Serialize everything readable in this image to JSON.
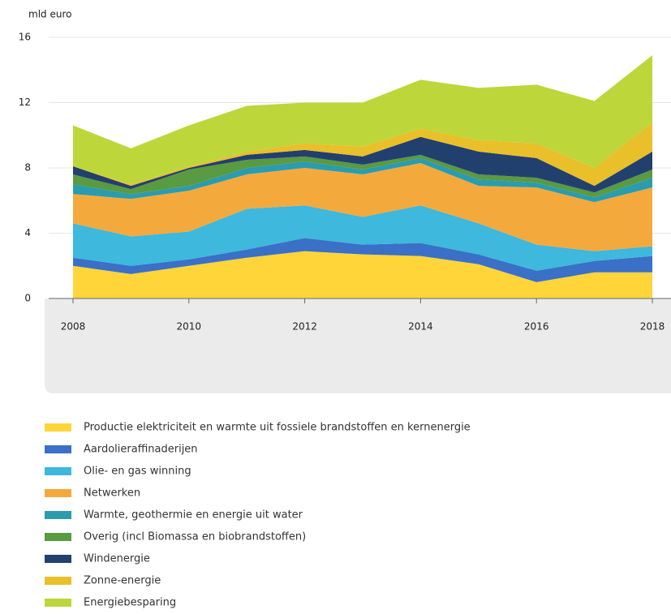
{
  "chart_data": {
    "type": "stacked-area",
    "y_axis_label": "mld euro",
    "x": [
      2008,
      2009,
      2010,
      2011,
      2012,
      2013,
      2014,
      2015,
      2016,
      2017,
      2018
    ],
    "xlim": [
      2008,
      2018
    ],
    "xticks": [
      2008,
      2010,
      2012,
      2014,
      2016,
      2018
    ],
    "ylim": [
      0,
      16
    ],
    "yticks": [
      0,
      4,
      8,
      12,
      16
    ],
    "grid": true,
    "series": [
      {
        "name": "Productie elektriciteit en warmte uit fossiele brandstoffen en kernenergie",
        "color": "#ffd53a",
        "values": [
          2.0,
          1.5,
          2.0,
          2.5,
          2.9,
          2.7,
          2.6,
          2.1,
          1.0,
          1.6,
          1.6
        ]
      },
      {
        "name": "Aardolieraffinaderijen",
        "color": "#3a70c6",
        "values": [
          0.5,
          0.5,
          0.4,
          0.5,
          0.8,
          0.6,
          0.8,
          0.6,
          0.7,
          0.7,
          1.0
        ]
      },
      {
        "name": "Olie- en gas winning",
        "color": "#3eb8dc",
        "values": [
          2.1,
          1.8,
          1.7,
          2.5,
          2.0,
          1.7,
          2.3,
          1.9,
          1.6,
          0.6,
          0.6
        ]
      },
      {
        "name": "Netwerken",
        "color": "#f4a93c",
        "values": [
          1.8,
          2.3,
          2.5,
          2.1,
          2.3,
          2.6,
          2.6,
          2.3,
          3.5,
          3.0,
          3.6
        ]
      },
      {
        "name": "Warmte, geothermie en energie uit water",
        "color": "#2b9cad",
        "values": [
          0.6,
          0.3,
          0.3,
          0.4,
          0.4,
          0.3,
          0.3,
          0.4,
          0.3,
          0.3,
          0.6
        ]
      },
      {
        "name": "Overig (incl Biomassa en biobrandstoffen)",
        "color": "#5a9a40",
        "values": [
          0.6,
          0.3,
          1.0,
          0.5,
          0.3,
          0.3,
          0.2,
          0.3,
          0.3,
          0.3,
          0.5
        ]
      },
      {
        "name": "Windenergie",
        "color": "#22406e",
        "values": [
          0.5,
          0.2,
          0.1,
          0.3,
          0.4,
          0.5,
          1.1,
          1.4,
          1.2,
          0.4,
          1.1
        ]
      },
      {
        "name": "Zonne-energie",
        "color": "#e9bf2a",
        "values": [
          0.0,
          0.1,
          0.1,
          0.2,
          0.4,
          0.6,
          0.5,
          0.7,
          0.9,
          1.1,
          1.8
        ]
      },
      {
        "name": "Energiebesparing",
        "color": "#bdd63a",
        "values": [
          2.5,
          2.2,
          2.5,
          2.8,
          2.5,
          2.7,
          3.0,
          3.2,
          3.6,
          4.1,
          4.1
        ]
      }
    ]
  }
}
